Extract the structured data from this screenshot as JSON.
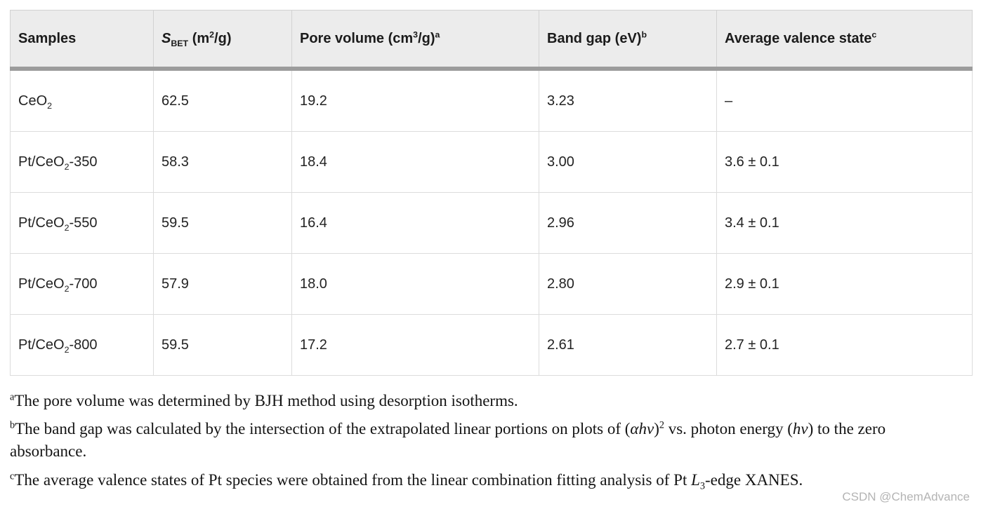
{
  "colors": {
    "header_bg": "#ececec",
    "header_rule": "#9c9c9c",
    "grid_line": "#dcdcdc",
    "text": "#232323",
    "watermark": "#b4b4b4"
  },
  "table": {
    "header": {
      "cells": [
        {
          "segments": [
            {
              "t": "Samples"
            }
          ]
        },
        {
          "segments": [
            {
              "t": "S",
              "s": "i"
            },
            {
              "t": "BET",
              "s": "sub"
            },
            {
              "t": " (m"
            },
            {
              "t": "2",
              "s": "sup"
            },
            {
              "t": "/g)"
            }
          ]
        },
        {
          "segments": [
            {
              "t": "Pore volume (cm"
            },
            {
              "t": "3",
              "s": "sup"
            },
            {
              "t": "/g)"
            },
            {
              "t": "a",
              "s": "sup"
            }
          ]
        },
        {
          "segments": [
            {
              "t": "Band gap (eV)"
            },
            {
              "t": "b",
              "s": "sup"
            }
          ]
        },
        {
          "segments": [
            {
              "t": "Average valence state"
            },
            {
              "t": "c",
              "s": "sup"
            }
          ]
        }
      ]
    },
    "rows": [
      {
        "cells": [
          {
            "segments": [
              {
                "t": "CeO"
              },
              {
                "t": "2",
                "s": "sub"
              }
            ]
          },
          {
            "segments": [
              {
                "t": "62.5"
              }
            ]
          },
          {
            "segments": [
              {
                "t": "19.2"
              }
            ]
          },
          {
            "segments": [
              {
                "t": "3.23"
              }
            ]
          },
          {
            "segments": [
              {
                "t": "–"
              }
            ]
          }
        ]
      },
      {
        "cells": [
          {
            "segments": [
              {
                "t": "Pt/CeO"
              },
              {
                "t": "2",
                "s": "sub"
              },
              {
                "t": "-350"
              }
            ]
          },
          {
            "segments": [
              {
                "t": "58.3"
              }
            ]
          },
          {
            "segments": [
              {
                "t": "18.4"
              }
            ]
          },
          {
            "segments": [
              {
                "t": "3.00"
              }
            ]
          },
          {
            "segments": [
              {
                "t": "3.6 ± 0.1"
              }
            ]
          }
        ]
      },
      {
        "cells": [
          {
            "segments": [
              {
                "t": "Pt/CeO"
              },
              {
                "t": "2",
                "s": "sub"
              },
              {
                "t": "-550"
              }
            ]
          },
          {
            "segments": [
              {
                "t": "59.5"
              }
            ]
          },
          {
            "segments": [
              {
                "t": "16.4"
              }
            ]
          },
          {
            "segments": [
              {
                "t": "2.96"
              }
            ]
          },
          {
            "segments": [
              {
                "t": "3.4 ± 0.1"
              }
            ]
          }
        ]
      },
      {
        "cells": [
          {
            "segments": [
              {
                "t": "Pt/CeO"
              },
              {
                "t": "2",
                "s": "sub"
              },
              {
                "t": "-700"
              }
            ]
          },
          {
            "segments": [
              {
                "t": "57.9"
              }
            ]
          },
          {
            "segments": [
              {
                "t": "18.0"
              }
            ]
          },
          {
            "segments": [
              {
                "t": "2.80"
              }
            ]
          },
          {
            "segments": [
              {
                "t": "2.9 ± 0.1"
              }
            ]
          }
        ]
      },
      {
        "cells": [
          {
            "segments": [
              {
                "t": "Pt/CeO"
              },
              {
                "t": "2",
                "s": "sub"
              },
              {
                "t": "-800"
              }
            ]
          },
          {
            "segments": [
              {
                "t": "59.5"
              }
            ]
          },
          {
            "segments": [
              {
                "t": "17.2"
              }
            ]
          },
          {
            "segments": [
              {
                "t": "2.61"
              }
            ]
          },
          {
            "segments": [
              {
                "t": "2.7 ± 0.1"
              }
            ]
          }
        ]
      }
    ]
  },
  "footnotes": [
    {
      "segments": [
        {
          "t": "a",
          "s": "sup"
        },
        {
          "t": "The pore volume was determined by BJH method using desorption isotherms."
        }
      ]
    },
    {
      "segments": [
        {
          "t": "b",
          "s": "sup"
        },
        {
          "t": "The band gap was calculated by the intersection of the extrapolated linear portions on plots of ("
        },
        {
          "t": "αhv",
          "s": "i"
        },
        {
          "t": ")"
        },
        {
          "t": "2",
          "s": "sup"
        },
        {
          "t": " vs. photon energy ("
        },
        {
          "t": "hv",
          "s": "i"
        },
        {
          "t": ") to the zero absorbance."
        }
      ]
    },
    {
      "segments": [
        {
          "t": "c",
          "s": "sup"
        },
        {
          "t": "The average valence states of Pt species were obtained from the linear combination fitting analysis of Pt "
        },
        {
          "t": "L",
          "s": "i"
        },
        {
          "t": "3",
          "s": "sub"
        },
        {
          "t": "-edge XANES."
        }
      ]
    }
  ],
  "watermark": {
    "text": "CSDN @ChemAdvance"
  }
}
